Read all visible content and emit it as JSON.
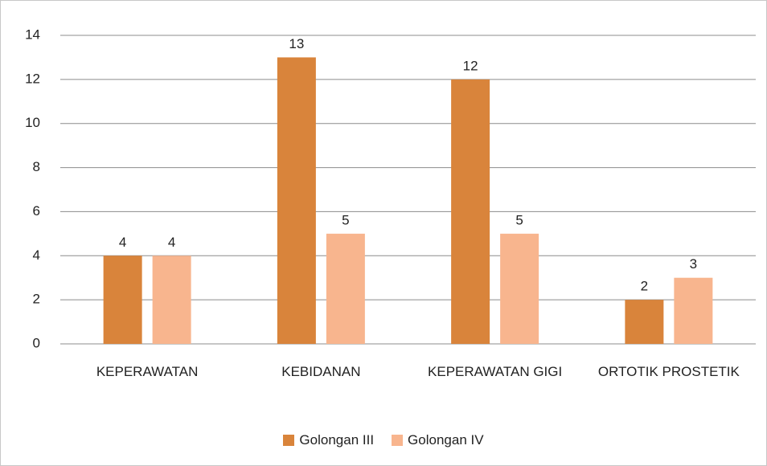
{
  "chart_data": {
    "type": "bar",
    "categories": [
      "KEPERAWATAN",
      "KEBIDANAN",
      "KEPERAWATAN GIGI",
      "ORTOTIK PROSTETIK"
    ],
    "series": [
      {
        "name": "Golongan III",
        "color": "#d9843b",
        "values": [
          4,
          13,
          12,
          2
        ]
      },
      {
        "name": "Golongan IV",
        "color": "#f8b58e",
        "values": [
          4,
          5,
          5,
          3
        ]
      }
    ],
    "ylim": [
      0,
      14
    ],
    "yticks": [
      0,
      2,
      4,
      6,
      8,
      10,
      12,
      14
    ],
    "grid": true,
    "legend": "bottom"
  }
}
